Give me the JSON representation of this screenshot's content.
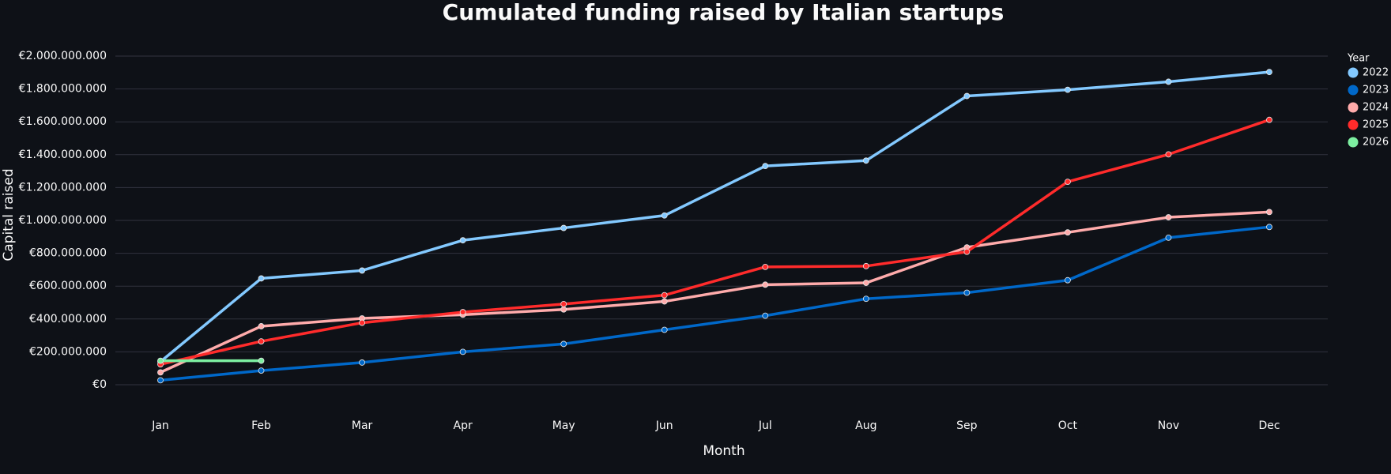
{
  "chart_data": {
    "type": "line",
    "title": "Cumulated funding raised by Italian startups",
    "x_label": "Month",
    "y_label": "Capital raised",
    "legend_title": "Year",
    "legend_position": "right",
    "grid": true,
    "categories": [
      "Jan",
      "Feb",
      "Mar",
      "Apr",
      "May",
      "Jun",
      "Jul",
      "Aug",
      "Sep",
      "Oct",
      "Nov",
      "Dec"
    ],
    "ylim": [
      0,
      2000000000
    ],
    "yticks": [
      {
        "value": 0,
        "label": "€0"
      },
      {
        "value": 200000000,
        "label": "€200.000.000"
      },
      {
        "value": 400000000,
        "label": "€400.000.000"
      },
      {
        "value": 600000000,
        "label": "€600.000.000"
      },
      {
        "value": 800000000,
        "label": "€800.000.000"
      },
      {
        "value": 1000000000,
        "label": "€1.000.000.000"
      },
      {
        "value": 1200000000,
        "label": "€1.200.000.000"
      },
      {
        "value": 1400000000,
        "label": "€1.400.000.000"
      },
      {
        "value": 1600000000,
        "label": "€1.600.000.000"
      },
      {
        "value": 1800000000,
        "label": "€1.800.000.000"
      },
      {
        "value": 2000000000,
        "label": "€2.000.000.000"
      }
    ],
    "series": [
      {
        "name": "2022",
        "color": "#83c9ff",
        "values": [
          140000000,
          647000000,
          695000000,
          879000000,
          954000000,
          1030000000,
          1331000000,
          1364000000,
          1757000000,
          1795000000,
          1844000000,
          1903000000
        ]
      },
      {
        "name": "2023",
        "color": "#0068c9",
        "values": [
          27000000,
          86000000,
          135000000,
          200000000,
          248000000,
          334000000,
          420000000,
          523000000,
          560000000,
          636000000,
          895000000,
          960000000
        ]
      },
      {
        "name": "2024",
        "color": "#ffabab",
        "values": [
          75000000,
          356000000,
          404000000,
          426000000,
          458000000,
          507000000,
          609000000,
          620000000,
          836000000,
          927000000,
          1019000000,
          1051000000
        ]
      },
      {
        "name": "2025",
        "color": "#ff2b2b",
        "values": [
          124000000,
          264000000,
          377000000,
          442000000,
          491000000,
          545000000,
          717000000,
          722000000,
          809000000,
          1235000000,
          1402000000,
          1612000000
        ]
      },
      {
        "name": "2026",
        "color": "#7defa1",
        "values": [
          146000000,
          146000000,
          null,
          null,
          null,
          null,
          null,
          null,
          null,
          null,
          null,
          null
        ]
      }
    ]
  }
}
